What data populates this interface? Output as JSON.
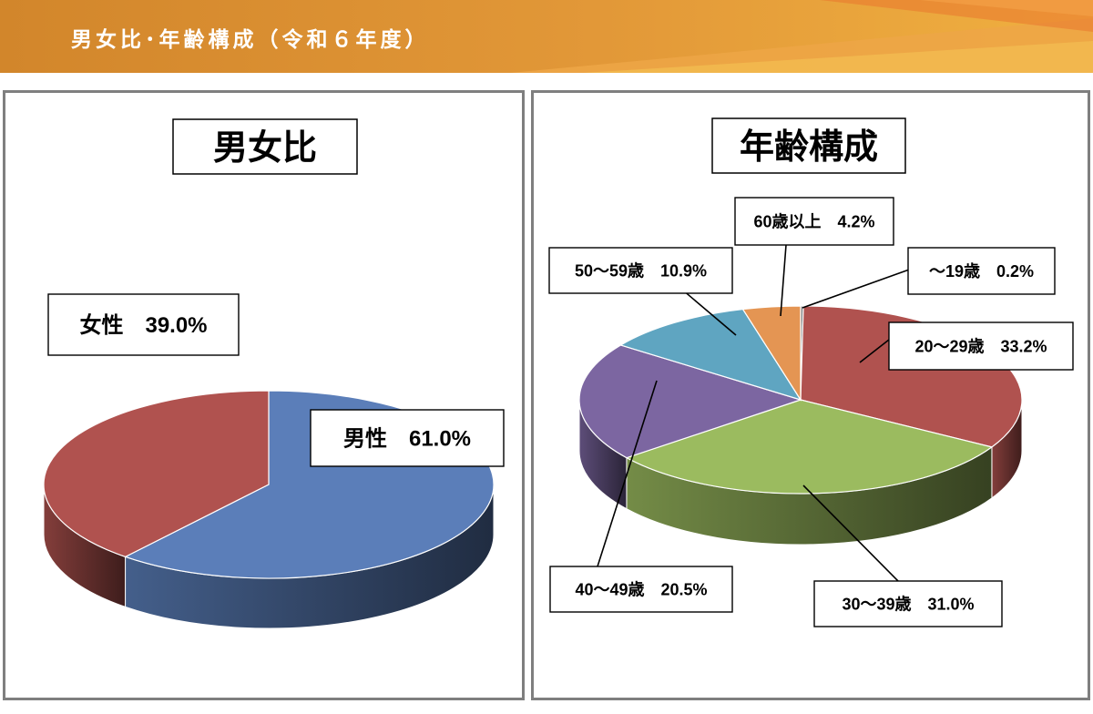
{
  "header": {
    "title": "男女比･年齢構成（令和６年度）"
  },
  "chart_data": [
    {
      "type": "pie",
      "title": "男女比",
      "slices": [
        {
          "label": "男性",
          "value": 61.0,
          "display": "男性　61.0%",
          "color": "#5B7EB9"
        },
        {
          "label": "女性",
          "value": 39.0,
          "display": "女性　39.0%",
          "color": "#B0524F"
        }
      ]
    },
    {
      "type": "pie",
      "title": "年齢構成",
      "slices": [
        {
          "label": "～19歳",
          "value": 0.2,
          "display": "～19歳　0.2%",
          "color": "#7D7D7D"
        },
        {
          "label": "20～29歳",
          "value": 33.2,
          "display": "20～29歳　33.2%",
          "color": "#B0524F"
        },
        {
          "label": "30～39歳",
          "value": 31.0,
          "display": "30～39歳　31.0%",
          "color": "#9BBB5F"
        },
        {
          "label": "40～49歳",
          "value": 20.5,
          "display": "40～49歳　20.5%",
          "color": "#7C66A1"
        },
        {
          "label": "50～59歳",
          "value": 10.9,
          "display": "50～59歳　10.9%",
          "color": "#5FA5C1"
        },
        {
          "label": "60歳以上",
          "value": 4.2,
          "display": "60歳以上　4.2%",
          "color": "#E49553"
        }
      ]
    }
  ]
}
